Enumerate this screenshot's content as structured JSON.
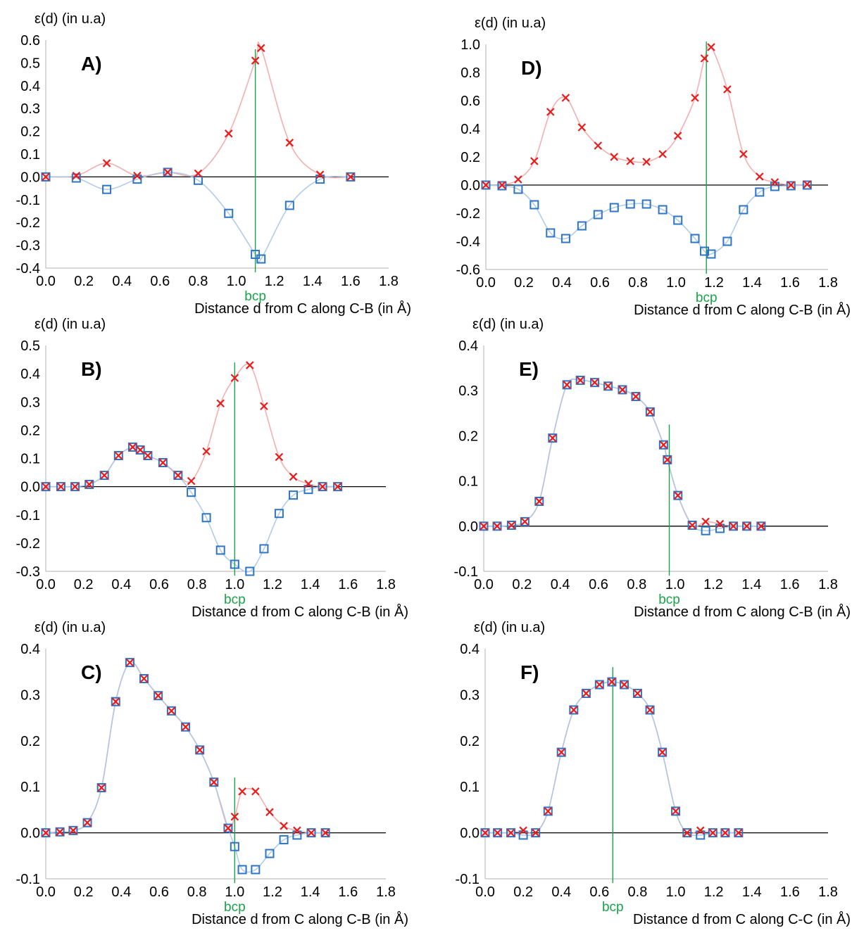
{
  "figure": {
    "series_styles": [
      {
        "marker": "x",
        "color": "#e81c1c",
        "line_color": "#f3a6a6"
      },
      {
        "marker": "square",
        "color": "#2e75c5",
        "line_color": "#a9c8e8"
      }
    ],
    "colors": {
      "zero_line": "#000000",
      "bcp_line": "#19a34a",
      "bcp_text": "#19a34a"
    }
  },
  "chart_data": [
    {
      "type": "scatter",
      "panel_label": "A)",
      "ylabel": "ε(d) (in u.a)",
      "xlabel": "Distance d from C along C-B (in Å)",
      "xlim": [
        0,
        1.8
      ],
      "ylim": [
        -0.4,
        0.6
      ],
      "xticks": [
        "0.0",
        "0.2",
        "0.4",
        "0.6",
        "0.8",
        "1.0",
        "1.2",
        "1.4",
        "1.6",
        "1.8"
      ],
      "yticks": [
        "-0.4",
        "-0.3",
        "-0.2",
        "-0.1",
        "0.0",
        "0.1",
        "0.2",
        "0.3",
        "0.4",
        "0.5",
        "0.6"
      ],
      "bcp": {
        "label": "bcp",
        "x": 1.1,
        "y_top": 0.56
      },
      "series": [
        {
          "x": [
            0,
            0.16,
            0.32,
            0.48,
            0.64,
            0.8,
            0.96,
            1.1,
            1.13,
            1.28,
            1.44,
            1.6
          ],
          "y": [
            0,
            0.005,
            0.06,
            0.005,
            0.02,
            0.015,
            0.19,
            0.51,
            0.565,
            0.15,
            0.01,
            0
          ]
        },
        {
          "x": [
            0,
            0.16,
            0.32,
            0.48,
            0.64,
            0.8,
            0.96,
            1.1,
            1.13,
            1.28,
            1.44,
            1.6
          ],
          "y": [
            0,
            -0.005,
            -0.055,
            -0.01,
            0.02,
            -0.015,
            -0.16,
            -0.34,
            -0.36,
            -0.125,
            -0.01,
            0
          ]
        }
      ]
    },
    {
      "type": "scatter",
      "panel_label": "D)",
      "ylabel": "ε(d) (in u.a)",
      "xlabel": "Distance d from C along C-B (in Å)",
      "xlim": [
        0,
        1.8
      ],
      "ylim": [
        -0.6,
        1.0
      ],
      "xticks": [
        "0.0",
        "0.2",
        "0.4",
        "0.6",
        "0.8",
        "1.0",
        "1.2",
        "1.4",
        "1.6",
        "1.8"
      ],
      "yticks": [
        "-0.6",
        "-0.4",
        "-0.2",
        "0.0",
        "0.2",
        "0.4",
        "0.6",
        "0.8",
        "1.0"
      ],
      "bcp": {
        "label": "bcp",
        "x": 1.16,
        "y_top": 1.02
      },
      "series": [
        {
          "x": [
            0,
            0.085,
            0.17,
            0.255,
            0.34,
            0.42,
            0.505,
            0.59,
            0.675,
            0.76,
            0.845,
            0.93,
            1.01,
            1.1,
            1.15,
            1.185,
            1.27,
            1.355,
            1.44,
            1.52,
            1.605,
            1.69
          ],
          "y": [
            0,
            0,
            0.04,
            0.17,
            0.52,
            0.62,
            0.41,
            0.28,
            0.2,
            0.17,
            0.165,
            0.22,
            0.35,
            0.62,
            0.9,
            0.98,
            0.68,
            0.22,
            0.06,
            0.02,
            0,
            0.005
          ]
        },
        {
          "x": [
            0,
            0.085,
            0.17,
            0.255,
            0.34,
            0.42,
            0.505,
            0.59,
            0.675,
            0.76,
            0.845,
            0.93,
            1.01,
            1.1,
            1.15,
            1.185,
            1.27,
            1.355,
            1.44,
            1.52,
            1.605,
            1.69
          ],
          "y": [
            0,
            -0.005,
            -0.03,
            -0.14,
            -0.34,
            -0.38,
            -0.29,
            -0.21,
            -0.16,
            -0.135,
            -0.135,
            -0.175,
            -0.25,
            -0.38,
            -0.47,
            -0.49,
            -0.4,
            -0.175,
            -0.05,
            -0.01,
            -0.005,
            0
          ]
        }
      ]
    },
    {
      "type": "scatter",
      "panel_label": "B)",
      "ylabel": "ε(d) (in u.a)",
      "xlabel": "Distance d from C along C-B (in Å)",
      "xlim": [
        0,
        1.8
      ],
      "ylim": [
        -0.3,
        0.5
      ],
      "xticks": [
        "0.0",
        "0.2",
        "0.4",
        "0.6",
        "0.8",
        "1.0",
        "1.2",
        "1.4",
        "1.6",
        "1.8"
      ],
      "yticks": [
        "-0.3",
        "-0.2",
        "-0.1",
        "0.0",
        "0.1",
        "0.2",
        "0.3",
        "0.4",
        "0.5"
      ],
      "bcp": {
        "label": "bcp",
        "x": 1.0,
        "y_top": 0.44
      },
      "series": [
        {
          "x": [
            0,
            0.08,
            0.155,
            0.23,
            0.31,
            0.385,
            0.46,
            0.5,
            0.54,
            0.62,
            0.7,
            0.77,
            0.85,
            0.925,
            1.0,
            1.08,
            1.155,
            1.235,
            1.31,
            1.39,
            1.465,
            1.545
          ],
          "y": [
            0,
            0,
            0,
            0.008,
            0.04,
            0.11,
            0.14,
            0.13,
            0.11,
            0.085,
            0.04,
            0.02,
            0.125,
            0.295,
            0.385,
            0.43,
            0.285,
            0.105,
            0.035,
            0.01,
            0,
            0
          ]
        },
        {
          "x": [
            0,
            0.08,
            0.155,
            0.23,
            0.31,
            0.385,
            0.46,
            0.5,
            0.54,
            0.62,
            0.7,
            0.77,
            0.85,
            0.925,
            1.0,
            1.08,
            1.155,
            1.235,
            1.31,
            1.39,
            1.465,
            1.545
          ],
          "y": [
            0,
            0,
            0,
            0.008,
            0.04,
            0.11,
            0.14,
            0.13,
            0.11,
            0.085,
            0.04,
            -0.02,
            -0.11,
            -0.225,
            -0.275,
            -0.3,
            -0.22,
            -0.095,
            -0.03,
            -0.01,
            0,
            0
          ]
        }
      ]
    },
    {
      "type": "scatter",
      "panel_label": "E)",
      "ylabel": "ε(d) (in u.a)",
      "xlabel": "Distance d from C along C-B (in Å)",
      "xlim": [
        0,
        1.8
      ],
      "ylim": [
        -0.1,
        0.4
      ],
      "xticks": [
        "0.0",
        "0.2",
        "0.4",
        "0.6",
        "0.8",
        "1.0",
        "1.2",
        "1.4",
        "1.6",
        "1.8"
      ],
      "yticks": [
        "-0.1",
        "0.0",
        "0.1",
        "0.2",
        "0.3",
        "0.4"
      ],
      "bcp": {
        "label": "bcp",
        "x": 0.97,
        "y_top": 0.225
      },
      "series": [
        {
          "x": [
            0,
            0.07,
            0.145,
            0.215,
            0.29,
            0.36,
            0.435,
            0.505,
            0.58,
            0.65,
            0.725,
            0.795,
            0.87,
            0.94,
            0.96,
            1.015,
            1.09,
            1.16,
            1.235,
            1.305,
            1.375,
            1.45
          ],
          "y": [
            0,
            0,
            0.002,
            0.01,
            0.055,
            0.195,
            0.313,
            0.323,
            0.318,
            0.31,
            0.302,
            0.287,
            0.253,
            0.18,
            0.147,
            0.068,
            0.002,
            0.01,
            0.005,
            0,
            0,
            0
          ]
        },
        {
          "x": [
            0,
            0.07,
            0.145,
            0.215,
            0.29,
            0.36,
            0.435,
            0.505,
            0.58,
            0.65,
            0.725,
            0.795,
            0.87,
            0.94,
            0.96,
            1.015,
            1.09,
            1.16,
            1.235,
            1.305,
            1.375,
            1.45
          ],
          "y": [
            0,
            0,
            0.002,
            0.01,
            0.055,
            0.195,
            0.313,
            0.323,
            0.318,
            0.31,
            0.302,
            0.287,
            0.253,
            0.18,
            0.147,
            0.068,
            0.002,
            -0.01,
            -0.005,
            0,
            0,
            0
          ]
        }
      ]
    },
    {
      "type": "scatter",
      "panel_label": "C)",
      "ylabel": "ε(d) (in u.a)",
      "xlabel": "Distance d from C along C-B (in Å)",
      "xlim": [
        0,
        1.8
      ],
      "ylim": [
        -0.1,
        0.4
      ],
      "xticks": [
        "0.0",
        "0.2",
        "0.4",
        "0.6",
        "0.8",
        "1.0",
        "1.2",
        "1.4",
        "1.6",
        "1.8"
      ],
      "yticks": [
        "-0.1",
        "0.0",
        "0.1",
        "0.2",
        "0.3",
        "0.4"
      ],
      "bcp": {
        "label": "bcp",
        "x": 1.0,
        "y_top": 0.12
      },
      "series": [
        {
          "x": [
            0,
            0.075,
            0.145,
            0.22,
            0.295,
            0.37,
            0.445,
            0.52,
            0.595,
            0.665,
            0.74,
            0.815,
            0.89,
            0.965,
            1.0,
            1.04,
            1.11,
            1.185,
            1.26,
            1.33,
            1.405,
            1.48
          ],
          "y": [
            0,
            0.002,
            0.005,
            0.022,
            0.098,
            0.285,
            0.37,
            0.335,
            0.298,
            0.265,
            0.23,
            0.18,
            0.11,
            0.01,
            0.035,
            0.09,
            0.09,
            0.045,
            0.015,
            0.005,
            0,
            0
          ]
        },
        {
          "x": [
            0,
            0.075,
            0.145,
            0.22,
            0.295,
            0.37,
            0.445,
            0.52,
            0.595,
            0.665,
            0.74,
            0.815,
            0.89,
            0.965,
            1.0,
            1.04,
            1.11,
            1.185,
            1.26,
            1.33,
            1.405,
            1.48
          ],
          "y": [
            0,
            0.002,
            0.005,
            0.022,
            0.098,
            0.285,
            0.37,
            0.335,
            0.298,
            0.265,
            0.23,
            0.18,
            0.11,
            0.01,
            -0.03,
            -0.08,
            -0.08,
            -0.045,
            -0.015,
            -0.005,
            0,
            0
          ]
        }
      ]
    },
    {
      "type": "scatter",
      "panel_label": "F)",
      "ylabel": "ε(d) (in u.a)",
      "xlabel": "Distance d from C along C-C (in Å)",
      "xlim": [
        0,
        1.8
      ],
      "ylim": [
        -0.1,
        0.4
      ],
      "xticks": [
        "0.0",
        "0.2",
        "0.4",
        "0.6",
        "0.8",
        "1.0",
        "1.2",
        "1.4",
        "1.6",
        "1.8"
      ],
      "yticks": [
        "-0.1",
        "0.0",
        "0.1",
        "0.2",
        "0.3",
        "0.4"
      ],
      "bcp": {
        "label": "bcp",
        "x": 0.67,
        "y_top": 0.36
      },
      "series": [
        {
          "x": [
            0,
            0.065,
            0.135,
            0.2,
            0.265,
            0.33,
            0.4,
            0.465,
            0.53,
            0.6,
            0.665,
            0.73,
            0.8,
            0.865,
            0.93,
            1.0,
            1.06,
            1.13,
            1.195,
            1.26,
            1.33
          ],
          "y": [
            0,
            0,
            0,
            0.005,
            0,
            0.047,
            0.175,
            0.267,
            0.303,
            0.322,
            0.328,
            0.322,
            0.303,
            0.267,
            0.175,
            0.047,
            0,
            0.005,
            0,
            0,
            0
          ]
        },
        {
          "x": [
            0,
            0.065,
            0.135,
            0.2,
            0.265,
            0.33,
            0.4,
            0.465,
            0.53,
            0.6,
            0.665,
            0.73,
            0.8,
            0.865,
            0.93,
            1.0,
            1.06,
            1.13,
            1.195,
            1.26,
            1.33
          ],
          "y": [
            0,
            0,
            0,
            -0.005,
            0,
            0.047,
            0.175,
            0.267,
            0.303,
            0.322,
            0.328,
            0.322,
            0.303,
            0.267,
            0.175,
            0.047,
            0,
            -0.005,
            0,
            0,
            0
          ]
        }
      ]
    }
  ]
}
